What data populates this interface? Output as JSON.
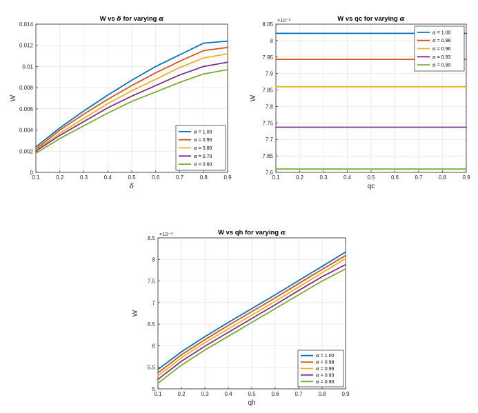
{
  "colors": [
    "#0072BD",
    "#D95319",
    "#EDB120",
    "#7E2F8E",
    "#77AC30"
  ],
  "chart_data": [
    {
      "type": "line",
      "title_prefix": "W vs ",
      "title_symbol": "δ",
      "title_suffix": " for varying ",
      "title_param": "α",
      "xlabel": "δ",
      "ylabel": "W",
      "multiplier": "",
      "xlim": [
        0.1,
        0.9
      ],
      "ylim": [
        0,
        0.014
      ],
      "xticks": [
        "0.1",
        "0.2",
        "0.3",
        "0.4",
        "0.5",
        "0.6",
        "0.7",
        "0.8",
        "0.9"
      ],
      "yticks": [
        "0",
        "0.002",
        "0.004",
        "0.006",
        "0.008",
        "0.01",
        "0.012",
        "0.014"
      ],
      "legend_position": "bottom-right",
      "x": [
        0.1,
        0.2,
        0.3,
        0.4,
        0.5,
        0.6,
        0.7,
        0.8,
        0.9
      ],
      "series": [
        {
          "name": "α = 1.00",
          "label_value": "= 1.00",
          "values": [
            0.0024,
            0.0042,
            0.0058,
            0.0073,
            0.0087,
            0.01,
            0.0111,
            0.0122,
            0.0124
          ]
        },
        {
          "name": "α = 0.90",
          "label_value": "= 0.90",
          "values": [
            0.0022,
            0.004,
            0.0055,
            0.0069,
            0.0082,
            0.0094,
            0.0105,
            0.0115,
            0.0118
          ]
        },
        {
          "name": "α = 0.80",
          "label_value": "= 0.80",
          "values": [
            0.0021,
            0.0037,
            0.0051,
            0.0065,
            0.0077,
            0.0088,
            0.0099,
            0.0108,
            0.0112
          ]
        },
        {
          "name": "α = 0.70",
          "label_value": "= 0.70",
          "values": [
            0.002,
            0.0035,
            0.0048,
            0.0061,
            0.0072,
            0.0082,
            0.0092,
            0.01,
            0.0104
          ]
        },
        {
          "name": "α = 0.60",
          "label_value": "= 0.60",
          "values": [
            0.0018,
            0.0032,
            0.0044,
            0.0056,
            0.0067,
            0.0076,
            0.0085,
            0.0093,
            0.0097
          ]
        }
      ]
    },
    {
      "type": "line",
      "title_prefix": "W vs qc for varying ",
      "title_symbol": "",
      "title_suffix": "",
      "title_param": "α",
      "xlabel": "qc",
      "ylabel": "W",
      "multiplier": "×10⁻³",
      "xlim": [
        0.1,
        0.9
      ],
      "ylim": [
        7.6,
        8.05
      ],
      "xticks": [
        "0.1",
        "0.2",
        "0.3",
        "0.4",
        "0.5",
        "0.6",
        "0.7",
        "0.8",
        "0.9"
      ],
      "yticks": [
        "7.6",
        "7.65",
        "7.7",
        "7.75",
        "7.8",
        "7.85",
        "7.9",
        "7.95",
        "8",
        "8.05"
      ],
      "ytick_values": [
        7.6,
        7.65,
        7.7,
        7.75,
        7.8,
        7.85,
        7.9,
        7.95,
        8.0,
        8.05
      ],
      "legend_position": "top-right",
      "x": [
        0.1,
        0.9
      ],
      "series": [
        {
          "name": "α = 1.00",
          "label_value": "= 1.00",
          "values": [
            8.022,
            8.022
          ]
        },
        {
          "name": "α = 0.98",
          "label_value": "= 0.98",
          "values": [
            7.943,
            7.943
          ]
        },
        {
          "name": "α = 0.96",
          "label_value": "= 0.96",
          "values": [
            7.86,
            7.86
          ]
        },
        {
          "name": "α = 0.93",
          "label_value": "= 0.93",
          "values": [
            7.737,
            7.737
          ]
        },
        {
          "name": "α = 0.90",
          "label_value": "= 0.90",
          "values": [
            7.61,
            7.61
          ]
        }
      ]
    },
    {
      "type": "line",
      "title_prefix": "W vs qh for varying ",
      "title_symbol": "",
      "title_suffix": "",
      "title_param": "α",
      "xlabel": "qh",
      "ylabel": "W",
      "multiplier": "×10⁻³",
      "xlim": [
        0.1,
        0.9
      ],
      "ylim": [
        5,
        8.5
      ],
      "xticks": [
        "0.1",
        "0.2",
        "0.3",
        "0.4",
        "0.5",
        "0.6",
        "0.7",
        "0.8",
        "0.9"
      ],
      "yticks": [
        "5",
        "5.5",
        "6",
        "6.5",
        "7",
        "7.5",
        "8",
        "8.5"
      ],
      "ytick_values": [
        5,
        5.5,
        6,
        6.5,
        7,
        7.5,
        8,
        8.5
      ],
      "legend_position": "bottom-right",
      "x": [
        0.1,
        0.2,
        0.3,
        0.4,
        0.5,
        0.6,
        0.7,
        0.8,
        0.9
      ],
      "series": [
        {
          "name": "α = 1.00",
          "label_value": "= 1.00",
          "values": [
            5.45,
            5.86,
            6.21,
            6.54,
            6.86,
            7.18,
            7.51,
            7.84,
            8.17
          ]
        },
        {
          "name": "α = 0.98",
          "label_value": "= 0.98",
          "values": [
            5.37,
            5.79,
            6.14,
            6.47,
            6.79,
            7.11,
            7.44,
            7.77,
            8.09
          ]
        },
        {
          "name": "α = 0.96",
          "label_value": "= 0.96",
          "values": [
            5.3,
            5.72,
            6.07,
            6.39,
            6.71,
            7.03,
            7.36,
            7.69,
            8.02
          ]
        },
        {
          "name": "α = 0.93",
          "label_value": "= 0.93",
          "values": [
            5.22,
            5.64,
            5.99,
            6.31,
            6.63,
            6.95,
            7.28,
            7.6,
            7.88
          ]
        },
        {
          "name": "α = 0.90",
          "label_value": "= 0.90",
          "values": [
            5.13,
            5.55,
            5.9,
            6.22,
            6.54,
            6.86,
            7.18,
            7.5,
            7.78
          ]
        }
      ]
    }
  ]
}
